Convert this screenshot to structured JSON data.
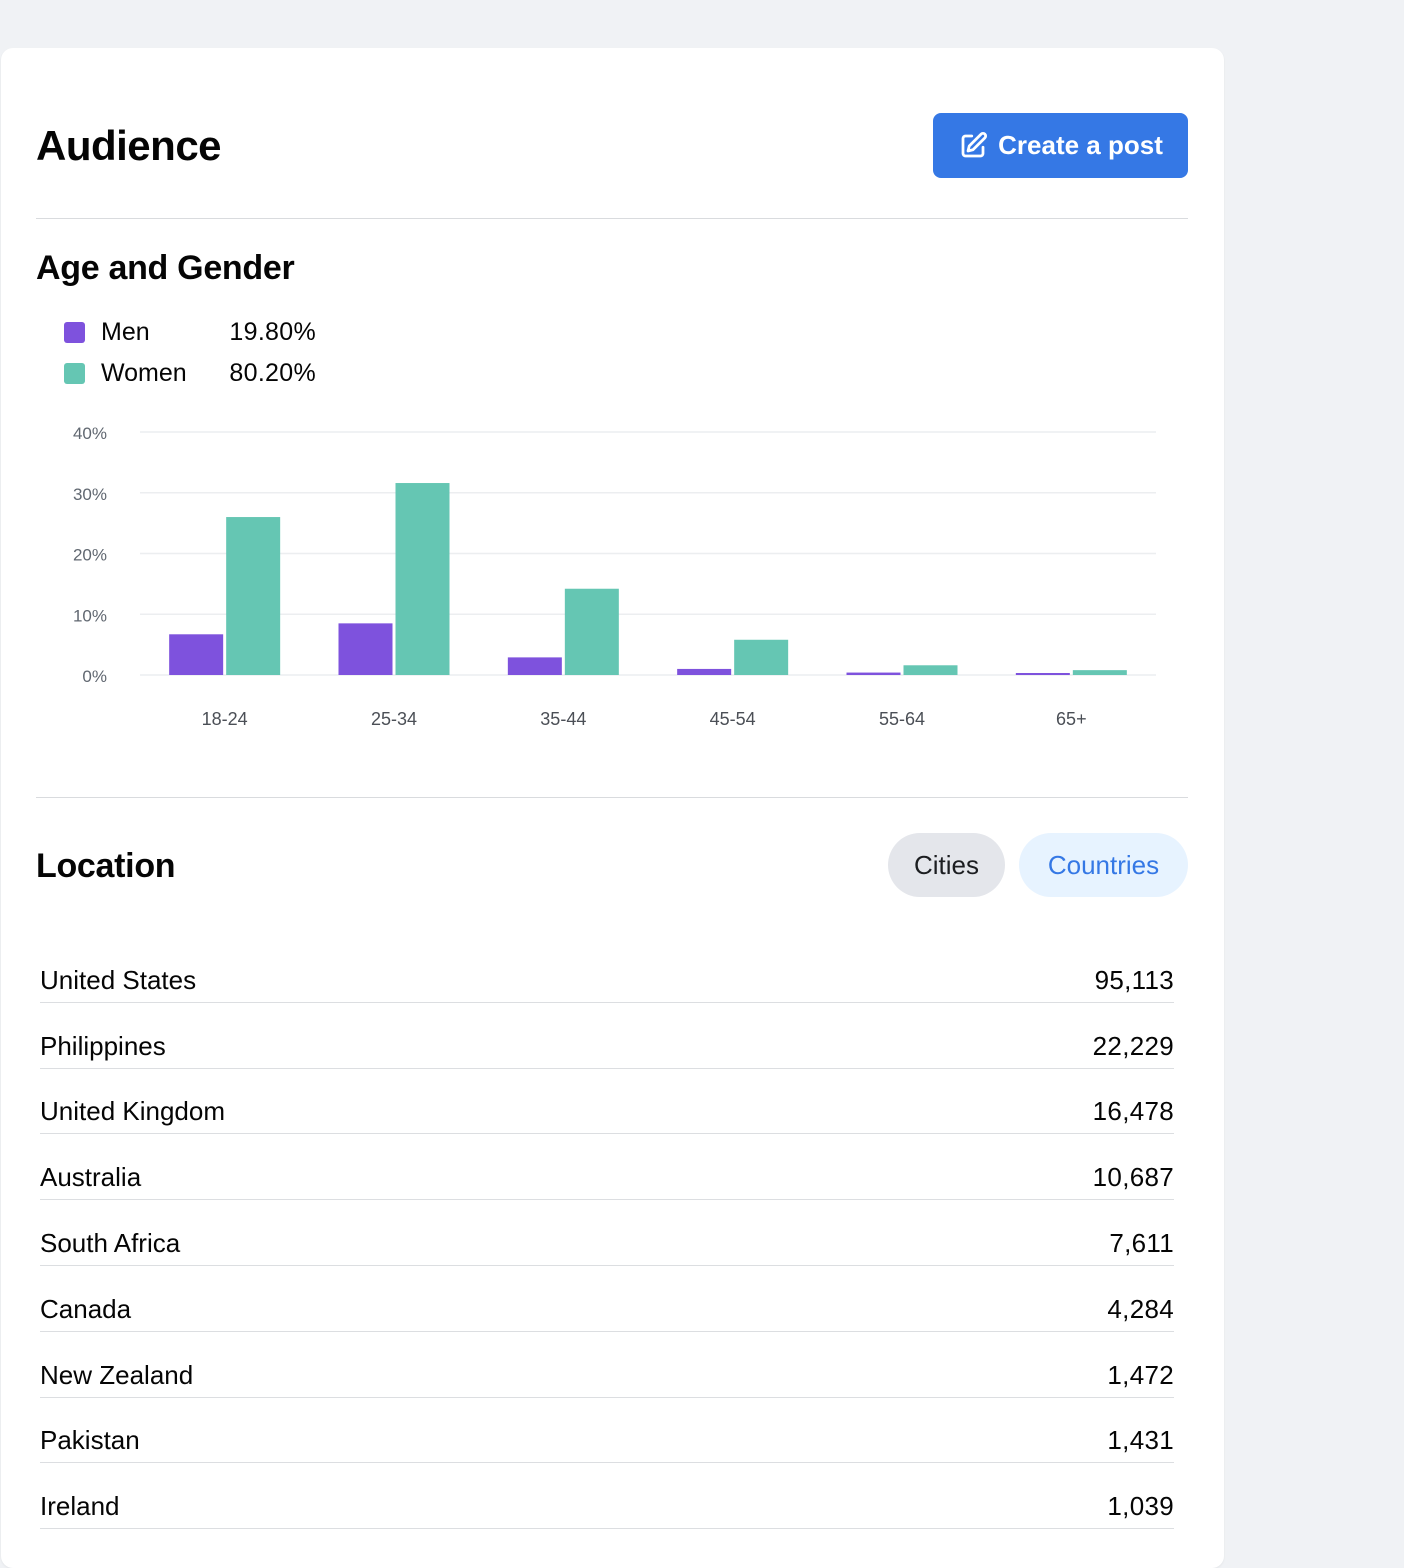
{
  "header": {
    "title": "Audience",
    "create_post_label": "Create a post",
    "create_post_icon": "edit-square-icon"
  },
  "age_gender": {
    "title": "Age and Gender",
    "legend": [
      {
        "label": "Men",
        "value": "19.80%",
        "color": "#7e52dd"
      },
      {
        "label": "Women",
        "value": "80.20%",
        "color": "#65c6b3"
      }
    ]
  },
  "chart_data": {
    "type": "bar",
    "categories": [
      "18-24",
      "25-34",
      "35-44",
      "45-54",
      "55-64",
      "65+"
    ],
    "series": [
      {
        "name": "Men",
        "values": [
          6.7,
          8.5,
          2.9,
          1.0,
          0.4,
          0.3
        ],
        "color": "#7e52dd"
      },
      {
        "name": "Women",
        "values": [
          26.0,
          31.6,
          14.2,
          5.8,
          1.6,
          0.8
        ],
        "color": "#65c6b3"
      }
    ],
    "title": "",
    "xlabel": "",
    "ylabel": "",
    "ylim": [
      0,
      40
    ],
    "yticks": [
      "0%",
      "10%",
      "20%",
      "30%",
      "40%"
    ],
    "grid": true,
    "legend_position": "top-left"
  },
  "location": {
    "title": "Location",
    "tabs": [
      {
        "label": "Cities",
        "active": false
      },
      {
        "label": "Countries",
        "active": true
      }
    ],
    "rows": [
      {
        "name": "United States",
        "count": "95,113"
      },
      {
        "name": "Philippines",
        "count": "22,229"
      },
      {
        "name": "United Kingdom",
        "count": "16,478"
      },
      {
        "name": "Australia",
        "count": "10,687"
      },
      {
        "name": "South Africa",
        "count": "7,611"
      },
      {
        "name": "Canada",
        "count": "4,284"
      },
      {
        "name": "New Zealand",
        "count": "1,472"
      },
      {
        "name": "Pakistan",
        "count": "1,431"
      },
      {
        "name": "Ireland",
        "count": "1,039"
      }
    ]
  }
}
